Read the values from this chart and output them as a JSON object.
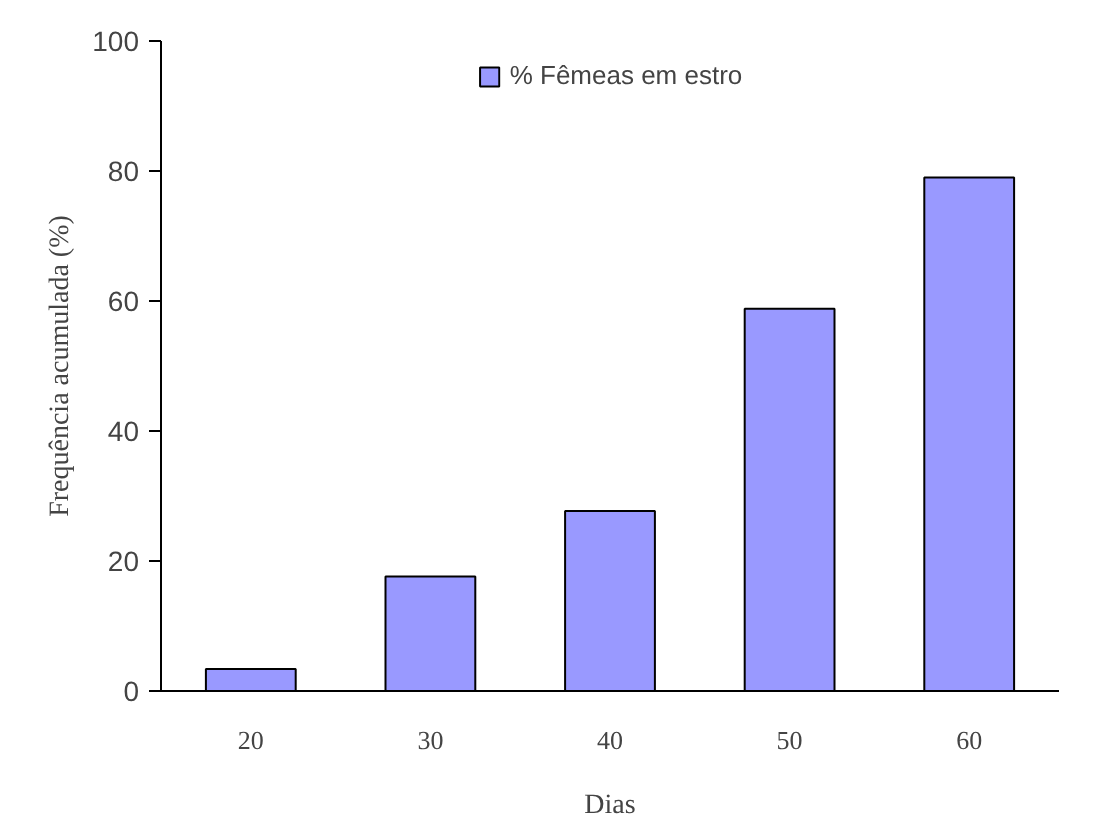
{
  "chart_data": {
    "type": "bar",
    "xlabel": "Dias",
    "ylabel": "Frequência acumulada (%)",
    "categories": [
      "20",
      "30",
      "40",
      "50",
      "60"
    ],
    "series": [
      {
        "name": "% Fêmeas em estro",
        "color": "#9999ff",
        "values": [
          3.4,
          17.6,
          27.7,
          58.8,
          79
        ]
      }
    ],
    "ylim": [
      0,
      100
    ],
    "yticks": [
      0,
      20,
      40,
      60,
      80,
      100
    ],
    "grid": false,
    "legend": "top"
  }
}
